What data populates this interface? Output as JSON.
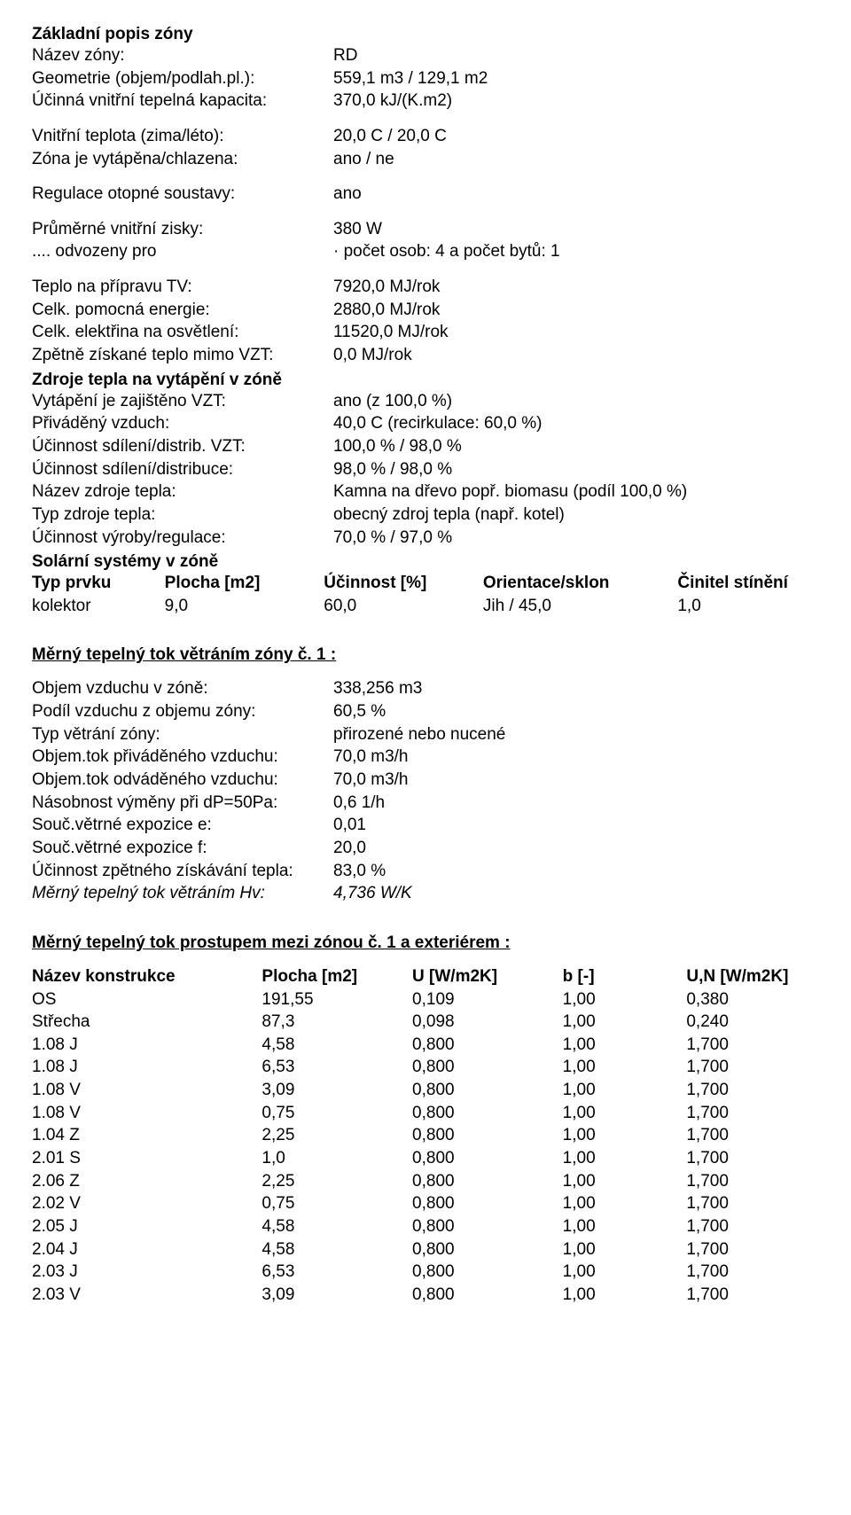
{
  "section1_title": "Základní popis zóny",
  "rows1a": [
    {
      "label": "Název zóny:",
      "value": "RD"
    },
    {
      "label": "Geometrie (objem/podlah.pl.):",
      "value": "559,1 m3 / 129,1 m2"
    },
    {
      "label": "Účinná vnitřní tepelná kapacita:",
      "value": "370,0 kJ/(K.m2)"
    }
  ],
  "rows1b": [
    {
      "label": "Vnitřní teplota (zima/léto):",
      "value": "20,0 C / 20,0 C"
    },
    {
      "label": "Zóna je vytápěna/chlazena:",
      "value": "ano / ne"
    }
  ],
  "rows1c": [
    {
      "label": "Regulace otopné soustavy:",
      "value": "ano"
    }
  ],
  "rows1d": [
    {
      "label": "Průměrné vnitřní zisky:",
      "value": "380 W"
    },
    {
      "label": " .... odvozeny pro",
      "value": "· počet osob: 4 a počet bytů: 1"
    }
  ],
  "rows1e": [
    {
      "label": "Teplo na přípravu TV:",
      "value": "7920,0 MJ/rok"
    },
    {
      "label": "Celk. pomocná energie:",
      "value": "2880,0 MJ/rok"
    },
    {
      "label": "Celk. elektřina na osvětlení:",
      "value": "11520,0 MJ/rok"
    },
    {
      "label": "Zpětně získané teplo mimo VZT:",
      "value": "0,0 MJ/rok"
    }
  ],
  "zdroje_title": "Zdroje tepla na vytápění v zóně",
  "rows2a": [
    {
      "label": "Vytápění je zajištěno VZT:",
      "value": "ano (z 100,0 %)"
    },
    {
      "label": "Přiváděný vzduch:",
      "value": "40,0 C (recirkulace: 60,0 %)"
    },
    {
      "label": "Účinnost sdílení/distrib. VZT:",
      "value": "100,0 % / 98,0 %"
    }
  ],
  "rows2b": [
    {
      "label": "Účinnost sdílení/distribuce:",
      "value": "98,0 % / 98,0 %"
    }
  ],
  "rows2c": [
    {
      "label": "Název zdroje tepla:",
      "value": "Kamna na dřevo popř. biomasu (podíl 100,0 %)"
    },
    {
      "label": "Typ zdroje tepla:",
      "value": "obecný zdroj tepla (např. kotel)"
    },
    {
      "label": "Účinnost výroby/regulace:",
      "value": "70,0 % / 97,0 %"
    }
  ],
  "solar_title": "Solární systémy v zóně",
  "solar_head": {
    "typ": "Typ prvku",
    "plo": "Plocha [m2]",
    "uci": "Účinnost [%]",
    "ori": "Orientace/sklon",
    "cin": "Činitel stínění"
  },
  "solar_rows": [
    {
      "typ": "kolektor",
      "plo": "9,0",
      "uci": "60,0",
      "ori": "Jih / 45,0",
      "cin": "1,0"
    }
  ],
  "vetrani_title": "Měrný tepelný tok větráním zóny č. 1 :",
  "rows3": [
    {
      "label": "Objem vzduchu v zóně:",
      "value": "338,256 m3"
    },
    {
      "label": "Podíl vzduchu z objemu zóny:",
      "value": "60,5 %"
    },
    {
      "label": "Typ větrání zóny:",
      "value": " přirozené nebo nucené"
    },
    {
      "label": "Objem.tok přiváděného vzduchu:",
      "value": "70,0 m3/h"
    },
    {
      "label": "Objem.tok odváděného vzduchu:",
      "value": "70,0 m3/h"
    },
    {
      "label": "Násobnost výměny při dP=50Pa:",
      "value": "0,6 1/h"
    },
    {
      "label": "Souč.větrné expozice e:",
      "value": "0,01"
    },
    {
      "label": "Souč.větrné expozice f:",
      "value": "20,0"
    },
    {
      "label": "Účinnost zpětného získávání tepla:",
      "value": "83,0 %"
    }
  ],
  "rows3_italic": {
    "label": "Měrný tepelný tok větráním Hv:",
    "value": "4,736 W/K"
  },
  "prostup_title": "Měrný tepelný tok prostupem mezi zónou č. 1 a exteriérem :",
  "tbl_head": {
    "name": "Název konstrukce",
    "plo": "Plocha [m2]",
    "u": "U [W/m2K]",
    "b": "b [-]",
    "un": "U,N [W/m2K]"
  },
  "tbl_rows": [
    {
      "name": "OS",
      "plo": "191,55",
      "u": "0,109",
      "b": "1,00",
      "un": "0,380"
    },
    {
      "name": "Střecha",
      "plo": "87,3",
      "u": "0,098",
      "b": "1,00",
      "un": "0,240"
    },
    {
      "name": "1.08 J",
      "plo": "4,58",
      "u": "0,800",
      "b": "1,00",
      "un": "1,700"
    },
    {
      "name": "1.08 J",
      "plo": "6,53",
      "u": "0,800",
      "b": "1,00",
      "un": "1,700"
    },
    {
      "name": "1.08 V",
      "plo": "3,09",
      "u": "0,800",
      "b": "1,00",
      "un": "1,700"
    },
    {
      "name": "1.08 V",
      "plo": "0,75",
      "u": "0,800",
      "b": "1,00",
      "un": "1,700"
    },
    {
      "name": "1.04 Z",
      "plo": "2,25",
      "u": "0,800",
      "b": "1,00",
      "un": "1,700"
    },
    {
      "name": "2.01 S",
      "plo": "1,0",
      "u": "0,800",
      "b": "1,00",
      "un": "1,700"
    },
    {
      "name": "2.06 Z",
      "plo": "2,25",
      "u": "0,800",
      "b": "1,00",
      "un": "1,700"
    },
    {
      "name": "2.02 V",
      "plo": "0,75",
      "u": "0,800",
      "b": "1,00",
      "un": "1,700"
    },
    {
      "name": "2.05 J",
      "plo": "4,58",
      "u": "0,800",
      "b": "1,00",
      "un": "1,700"
    },
    {
      "name": "2.04 J",
      "plo": "4,58",
      "u": "0,800",
      "b": "1,00",
      "un": "1,700"
    },
    {
      "name": "2.03 J",
      "plo": "6,53",
      "u": "0,800",
      "b": "1,00",
      "un": "1,700"
    },
    {
      "name": "2.03 V",
      "plo": "3,09",
      "u": "0,800",
      "b": "1,00",
      "un": "1,700"
    }
  ]
}
